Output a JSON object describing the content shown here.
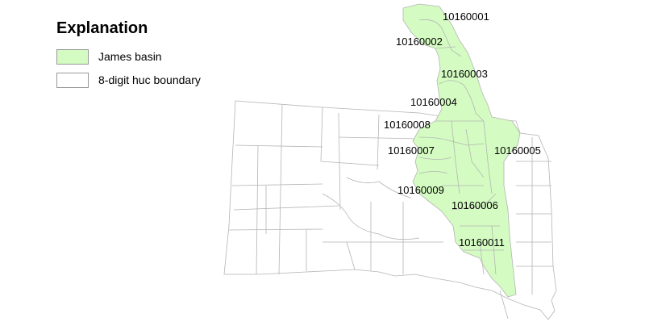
{
  "legend": {
    "title": "Explanation",
    "items": [
      {
        "label": "James basin",
        "color": "#d4fcc2"
      },
      {
        "label": "8-digit huc boundary",
        "color": "#ffffff"
      }
    ]
  },
  "map": {
    "boundary_color": "#b4b4b4",
    "basin_color": "#d4fcc2",
    "huc_labels": [
      "10160001",
      "10160002",
      "10160003",
      "10160004",
      "10160008",
      "10160007",
      "10160005",
      "10160009",
      "10160006",
      "10160011"
    ]
  }
}
